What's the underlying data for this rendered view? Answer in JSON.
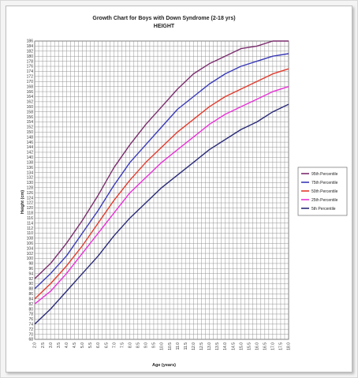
{
  "chart_data": {
    "type": "line",
    "title": "Growth Chart for Boys with Down Syndrome (2-18 yrs)",
    "subtitle": "HEIGHT",
    "xlabel": "Age (years)",
    "ylabel": "Height (cm)",
    "xlim": [
      2,
      18
    ],
    "ylim": [
      68,
      186
    ],
    "x_ticks": [
      2,
      2.5,
      3,
      3.5,
      4,
      4.5,
      5,
      5.5,
      6,
      6.5,
      7,
      7.5,
      8,
      8.5,
      9,
      9.5,
      10,
      10.5,
      11,
      11.5,
      12,
      12.5,
      13,
      13.5,
      14,
      14.5,
      15,
      15.5,
      16,
      16.5,
      17,
      17.5,
      18
    ],
    "y_ticks": [
      68,
      70,
      72,
      74,
      76,
      78,
      80,
      82,
      84,
      86,
      88,
      90,
      92,
      94,
      96,
      98,
      100,
      102,
      104,
      106,
      108,
      110,
      112,
      114,
      116,
      118,
      120,
      122,
      124,
      126,
      128,
      130,
      132,
      134,
      136,
      138,
      140,
      142,
      144,
      146,
      148,
      150,
      152,
      154,
      156,
      158,
      160,
      162,
      164,
      166,
      168,
      170,
      172,
      174,
      176,
      178,
      180,
      182,
      184,
      186
    ],
    "grid": true,
    "legend_position": "right",
    "x": [
      2,
      3,
      4,
      5,
      6,
      7,
      8,
      9,
      10,
      11,
      12,
      13,
      14,
      15,
      16,
      17,
      18
    ],
    "series": [
      {
        "name": "95th Percentile",
        "color": "#7b2d6e",
        "values": [
          92,
          98,
          106,
          115,
          125,
          136,
          145,
          153,
          160,
          167,
          173,
          177,
          180,
          183,
          184,
          186,
          186
        ]
      },
      {
        "name": "75th Percentile",
        "color": "#3a3ab8",
        "values": [
          88,
          94,
          101,
          110,
          119,
          129,
          138,
          145,
          152,
          159,
          164,
          169,
          173,
          176,
          178,
          180,
          181
        ]
      },
      {
        "name": "50th Percentile",
        "color": "#e23b2e",
        "values": [
          84,
          90,
          97,
          105,
          114,
          123,
          131,
          138,
          144,
          150,
          155,
          160,
          164,
          167,
          170,
          173,
          175
        ]
      },
      {
        "name": "25th Percentile",
        "color": "#e832d6",
        "values": [
          82,
          87,
          94,
          102,
          110,
          118,
          126,
          132,
          138,
          143,
          148,
          153,
          157,
          160,
          163,
          166,
          168
        ]
      },
      {
        "name": "5th Percentile",
        "color": "#2a2a78",
        "values": [
          74,
          80,
          87,
          94,
          101,
          109,
          116,
          122,
          128,
          133,
          138,
          143,
          147,
          151,
          154,
          158,
          161
        ]
      }
    ]
  }
}
